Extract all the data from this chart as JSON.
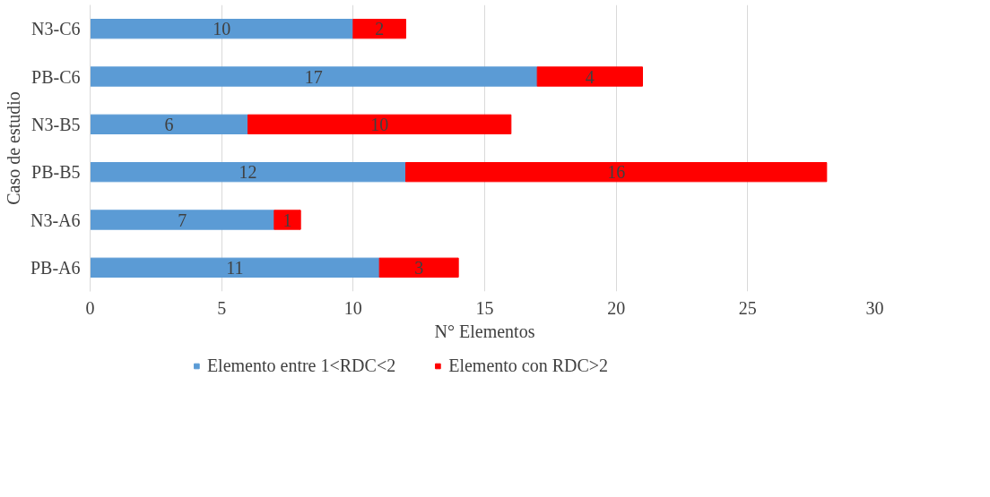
{
  "chart_data": {
    "type": "bar",
    "orientation": "horizontal",
    "stacked": true,
    "xlabel": "N° Elementos",
    "ylabel": "Caso de estudio",
    "categories": [
      "N3-C6",
      "PB-C6",
      "N3-B5",
      "PB-B5",
      "N3-A6",
      "PB-A6"
    ],
    "series": [
      {
        "name": "Elemento entre 1<RDC<2",
        "color": "#5b9bd5",
        "values": [
          10,
          17,
          6,
          12,
          7,
          11
        ]
      },
      {
        "name": "Elemento con RDC>2",
        "color": "#ff0000",
        "values": [
          2,
          4,
          10,
          16,
          1,
          3
        ]
      }
    ],
    "xlim": [
      0,
      30
    ],
    "xticks": [
      0,
      5,
      10,
      15,
      20,
      25,
      30
    ],
    "grid": "x",
    "legend": "bottom",
    "data_labels": true
  }
}
